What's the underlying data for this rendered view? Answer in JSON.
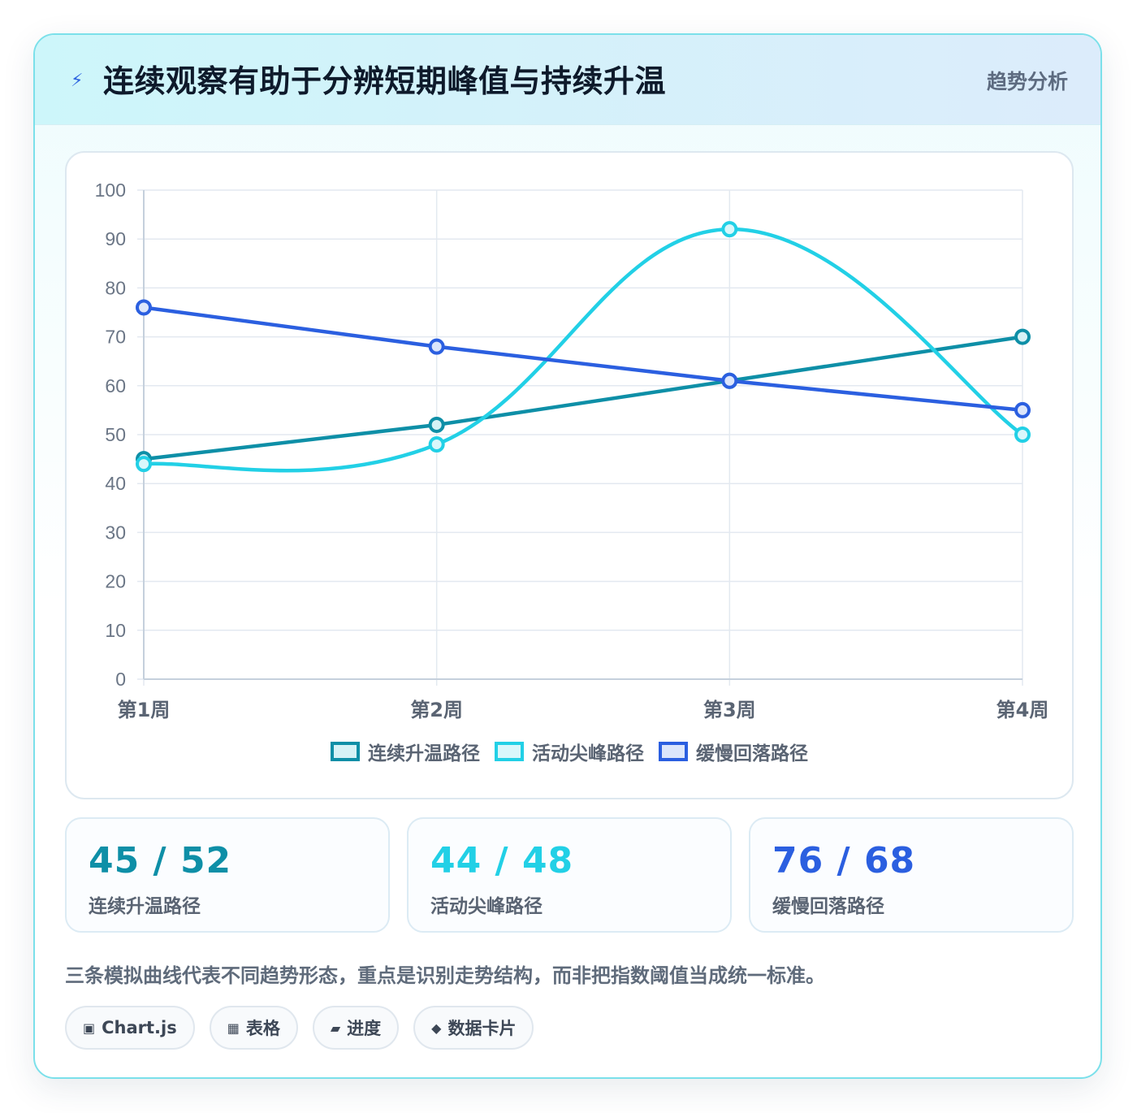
{
  "header": {
    "icon": "lightning-icon",
    "title": "连续观察有助于分辨短期峰值与持续升温",
    "tag": "趋势分析"
  },
  "chart_data": {
    "type": "line",
    "categories": [
      "第1周",
      "第2周",
      "第3周",
      "第4周"
    ],
    "ylim": [
      0,
      100
    ],
    "yticks": [
      0,
      10,
      20,
      30,
      40,
      50,
      60,
      70,
      80,
      90,
      100
    ],
    "grid": true,
    "legend_position": "bottom",
    "series": [
      {
        "name": "连续升温路径",
        "values": [
          45,
          52,
          61,
          70
        ],
        "color": "#0e8fa7",
        "fill": "#d6f2f6",
        "smooth": false
      },
      {
        "name": "活动尖峰路径",
        "values": [
          44,
          48,
          92,
          50
        ],
        "color": "#22d0e6",
        "fill": "#d9f7fb",
        "smooth": true
      },
      {
        "name": "缓慢回落路径",
        "values": [
          76,
          68,
          61,
          55
        ],
        "color": "#2b5fe0",
        "fill": "#dce6fb",
        "smooth": false
      }
    ]
  },
  "stats": [
    {
      "value": "45 / 52",
      "label": "连续升温路径",
      "color": "#0e8fa7"
    },
    {
      "value": "44 / 48",
      "label": "活动尖峰路径",
      "color": "#22d0e6"
    },
    {
      "value": "76 / 68",
      "label": "缓慢回落路径",
      "color": "#2b5fe0"
    }
  ],
  "note": "三条模拟曲线代表不同趋势形态，重点是识别走势结构，而非把指数阈值当成统一标准。",
  "chips": [
    {
      "icon": "▣",
      "label": "Chart.js"
    },
    {
      "icon": "▦",
      "label": "表格"
    },
    {
      "icon": "▰",
      "label": "进度"
    },
    {
      "icon": "◆",
      "label": "数据卡片"
    }
  ]
}
